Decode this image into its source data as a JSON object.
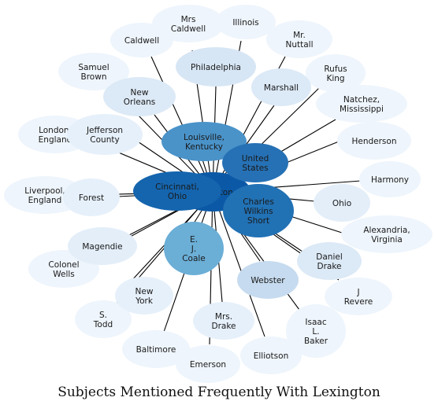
{
  "title": "Subjects Mentioned Frequently With Lexington",
  "center": {
    "label": "Lexington",
    "color": "#0b59a6"
  },
  "nodes": [
    {
      "id": "mrs-caldwell",
      "lines": [
        "Mrs",
        "Caldwell"
      ],
      "color": "#eef5fc"
    },
    {
      "id": "illinois",
      "lines": [
        "Illinois"
      ],
      "color": "#eef5fc"
    },
    {
      "id": "caldwell",
      "lines": [
        "Caldwell"
      ],
      "color": "#eef5fc"
    },
    {
      "id": "mr-nuttall",
      "lines": [
        "Mr.",
        "Nuttall"
      ],
      "color": "#eef5fc"
    },
    {
      "id": "samuel-brown",
      "lines": [
        "Samuel",
        "Brown"
      ],
      "color": "#eef5fc"
    },
    {
      "id": "philadelphia",
      "lines": [
        "Philadelphia"
      ],
      "color": "#d7e6f5"
    },
    {
      "id": "rufus-king",
      "lines": [
        "Rufus",
        "King"
      ],
      "color": "#eef5fc"
    },
    {
      "id": "new-orleans",
      "lines": [
        "New",
        "Orleans"
      ],
      "color": "#dce9f6"
    },
    {
      "id": "marshall",
      "lines": [
        "Marshall"
      ],
      "color": "#dce9f6"
    },
    {
      "id": "natchez",
      "lines": [
        "Natchez,",
        "Mississippi"
      ],
      "color": "#eef5fc"
    },
    {
      "id": "london",
      "lines": [
        "London,",
        "England"
      ],
      "color": "#eef5fc"
    },
    {
      "id": "jefferson-county",
      "lines": [
        "Jefferson",
        "County"
      ],
      "color": "#e6f0fa"
    },
    {
      "id": "henderson",
      "lines": [
        "Henderson"
      ],
      "color": "#eef5fc"
    },
    {
      "id": "louisville",
      "lines": [
        "Louisville,",
        "Kentucky"
      ],
      "color": "#4a93c9"
    },
    {
      "id": "united-states",
      "lines": [
        "United",
        "States"
      ],
      "color": "#2671b5"
    },
    {
      "id": "harmony",
      "lines": [
        "Harmony"
      ],
      "color": "#eef5fc"
    },
    {
      "id": "liverpool",
      "lines": [
        "Liverpool,",
        "England"
      ],
      "color": "#eef5fc"
    },
    {
      "id": "forest",
      "lines": [
        "Forest"
      ],
      "color": "#e6f0fa"
    },
    {
      "id": "cincinnati",
      "lines": [
        "Cincinnati,",
        "Ohio"
      ],
      "color": "#1565ae"
    },
    {
      "id": "charles-wilkins-short",
      "lines": [
        "Charles",
        "Wilkins",
        "Short"
      ],
      "color": "#2171b5"
    },
    {
      "id": "ohio",
      "lines": [
        "Ohio"
      ],
      "color": "#e3eef9"
    },
    {
      "id": "alexandria",
      "lines": [
        "Alexandria,",
        "Virginia"
      ],
      "color": "#eef5fc"
    },
    {
      "id": "magendie",
      "lines": [
        "Magendie"
      ],
      "color": "#e3eef9"
    },
    {
      "id": "ej-coale",
      "lines": [
        "E.",
        "J.",
        "Coale"
      ],
      "color": "#6baed6"
    },
    {
      "id": "daniel-drake",
      "lines": [
        "Daniel",
        "Drake"
      ],
      "color": "#dce9f6"
    },
    {
      "id": "colonel-wells",
      "lines": [
        "Colonel",
        "Wells"
      ],
      "color": "#eef5fc"
    },
    {
      "id": "webster",
      "lines": [
        "Webster"
      ],
      "color": "#c6dbef"
    },
    {
      "id": "new-york",
      "lines": [
        "New",
        "York"
      ],
      "color": "#e6f0fa"
    },
    {
      "id": "j-revere",
      "lines": [
        "J",
        "Revere"
      ],
      "color": "#eef5fc"
    },
    {
      "id": "s-todd",
      "lines": [
        "S.",
        "Todd"
      ],
      "color": "#eef5fc"
    },
    {
      "id": "isaac-l-baker",
      "lines": [
        "Isaac",
        "L.",
        "Baker"
      ],
      "color": "#eef5fc"
    },
    {
      "id": "mrs-drake",
      "lines": [
        "Mrs.",
        "Drake"
      ],
      "color": "#e6f0fa"
    },
    {
      "id": "baltimore",
      "lines": [
        "Baltimore"
      ],
      "color": "#eef5fc"
    },
    {
      "id": "elliotson",
      "lines": [
        "Elliotson"
      ],
      "color": "#eef5fc"
    },
    {
      "id": "emerson",
      "lines": [
        "Emerson"
      ],
      "color": "#eef5fc"
    }
  ]
}
